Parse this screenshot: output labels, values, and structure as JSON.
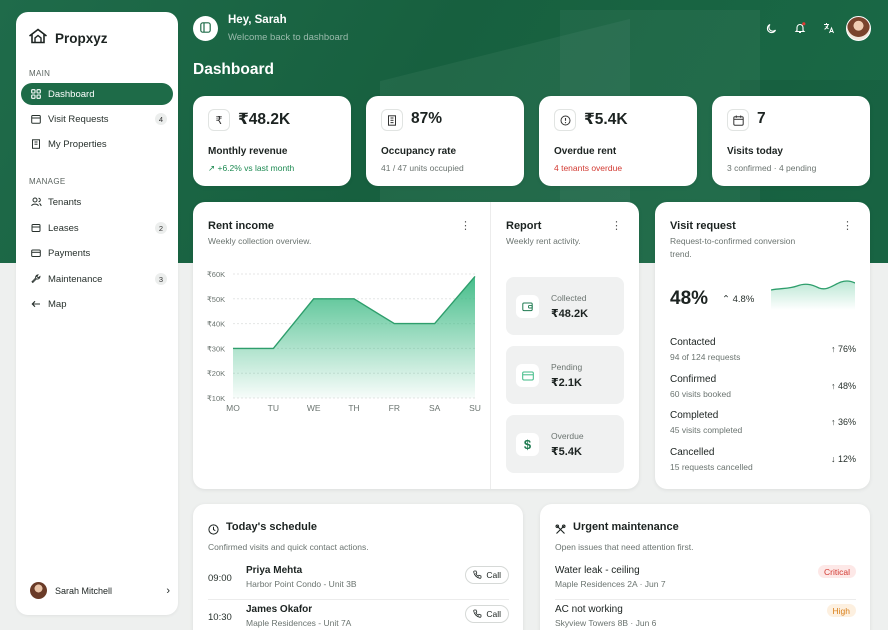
{
  "app": {
    "name": "Propxyz"
  },
  "sidebar": {
    "sections": [
      {
        "label": "MAIN",
        "items": [
          {
            "label": "Dashboard",
            "icon": "grid-icon",
            "active": true
          },
          {
            "label": "Visit Requests",
            "icon": "calendar-icon",
            "count": "4"
          },
          {
            "label": "My Properties",
            "icon": "building-icon"
          }
        ]
      },
      {
        "label": "MANAGE",
        "items": [
          {
            "label": "Tenants",
            "icon": "users-icon"
          },
          {
            "label": "Leases",
            "icon": "document-icon",
            "count": "2"
          },
          {
            "label": "Payments",
            "icon": "card-icon"
          },
          {
            "label": "Maintenance",
            "icon": "wrench-icon",
            "count": "3"
          },
          {
            "label": "Map",
            "icon": "arrow-left-icon"
          }
        ]
      }
    ],
    "user": {
      "name": "Sarah Mitchell"
    }
  },
  "header": {
    "greeting": "Hey, Sarah",
    "subtitle": "Welcome back to dashboard",
    "page_title": "Dashboard"
  },
  "stats": [
    {
      "icon": "rupee-icon",
      "value": "₹48.2K",
      "label": "Monthly revenue",
      "sub": "+6.2% vs last month",
      "tone": "green"
    },
    {
      "icon": "building-icon",
      "value": "87%",
      "label": "Occupancy rate",
      "sub": "41 / 47 units occupied",
      "tone": "muted"
    },
    {
      "icon": "clock-icon",
      "value": "₹5.4K",
      "label": "Overdue rent",
      "sub": "4 tenants overdue",
      "tone": "red"
    },
    {
      "icon": "calendar-icon",
      "value": "7",
      "label": "Visits today",
      "sub": "3 confirmed · 4 pending",
      "tone": "muted"
    }
  ],
  "rent_income": {
    "title": "Rent income",
    "subtitle": "Weekly collection overview."
  },
  "chart_data": {
    "type": "area",
    "title": "Rent income",
    "categories": [
      "MO",
      "TU",
      "WE",
      "TH",
      "FR",
      "SA",
      "SU"
    ],
    "values": [
      30,
      30,
      50,
      50,
      40,
      40,
      59
    ],
    "y_ticks": [
      "₹60K",
      "₹50K",
      "₹40K",
      "₹30K",
      "₹20K",
      "₹10K"
    ],
    "ylim": [
      10,
      60
    ],
    "color": "#3cba84",
    "grid": true
  },
  "report": {
    "title": "Report",
    "subtitle": "Weekly rent activity.",
    "items": [
      {
        "label": "Collected",
        "value": "₹48.2K",
        "icon": "wallet-icon"
      },
      {
        "label": "Pending",
        "value": "₹2.1K",
        "icon": "card-icon"
      },
      {
        "label": "Overdue",
        "value": "₹5.4K",
        "icon": "dollar-icon"
      }
    ]
  },
  "visit_request": {
    "title": "Visit request",
    "subtitle_line1": "Request-to-confirmed conversion",
    "subtitle_line2": "trend.",
    "percent": "48%",
    "delta": "4.8%",
    "rows": [
      {
        "title": "Contacted",
        "sub": "94 of 124 requests",
        "pct": "76%",
        "dir": "up"
      },
      {
        "title": "Confirmed",
        "sub": "60 visits booked",
        "pct": "48%",
        "dir": "up"
      },
      {
        "title": "Completed",
        "sub": "45 visits completed",
        "pct": "36%",
        "dir": "up"
      },
      {
        "title": "Cancelled",
        "sub": "15 requests cancelled",
        "pct": "12%",
        "dir": "down"
      }
    ]
  },
  "schedule": {
    "title": "Today's schedule",
    "subtitle": "Confirmed visits and quick contact actions.",
    "call_label": "Call",
    "rows": [
      {
        "time": "09:00",
        "name": "Priya Mehta",
        "address": "Harbor Point Condo - Unit 3B"
      },
      {
        "time": "10:30",
        "name": "James Okafor",
        "address": "Maple Residences - Unit 7A"
      }
    ]
  },
  "maintenance": {
    "title": "Urgent maintenance",
    "subtitle": "Open issues that need attention first.",
    "rows": [
      {
        "title": "Water leak - ceiling",
        "sub": "Maple Residences 2A · Jun 7",
        "badge": "Critical",
        "level": "crit"
      },
      {
        "title": "AC not working",
        "sub": "Skyview Towers 8B · Jun 6",
        "badge": "High",
        "level": "high"
      }
    ]
  }
}
